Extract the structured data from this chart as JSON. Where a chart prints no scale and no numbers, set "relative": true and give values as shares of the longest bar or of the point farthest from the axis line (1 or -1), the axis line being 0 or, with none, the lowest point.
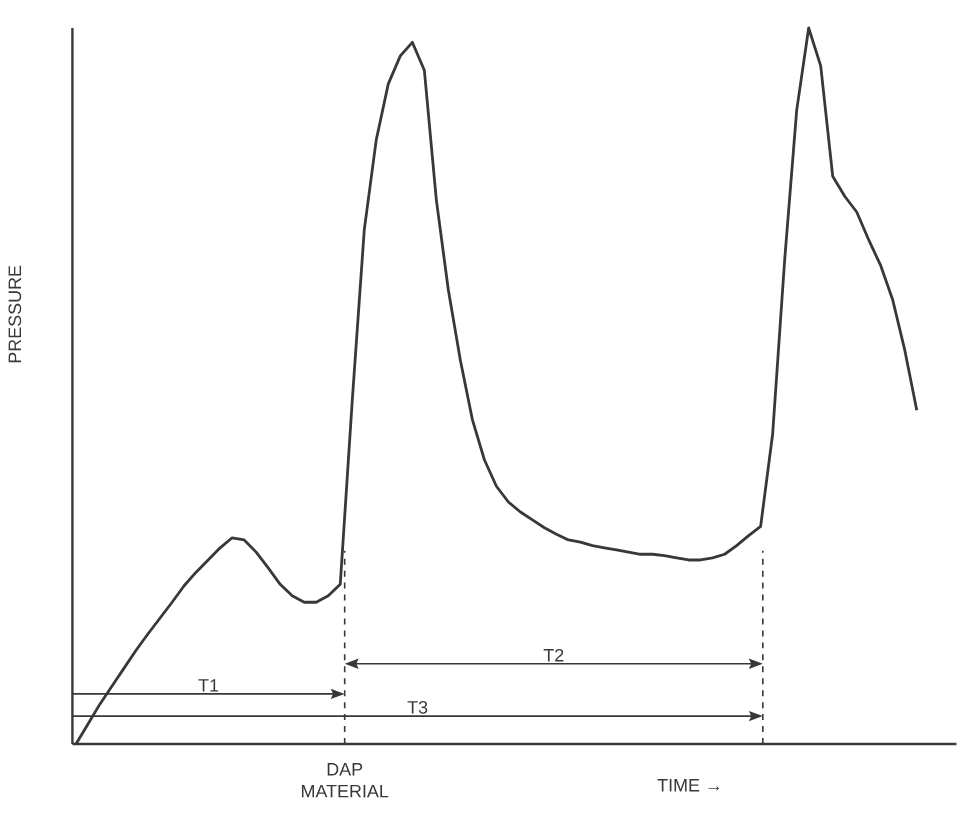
{
  "chart_data": {
    "type": "line",
    "relative": true,
    "xlabel": "TIME →",
    "ylabel": "PRESSURE",
    "color": "#383838",
    "marker": "none",
    "line_style": "solid",
    "categories": [
      null,
      null,
      null,
      null,
      null,
      null,
      null,
      null,
      null,
      null,
      null,
      null,
      null,
      null,
      null,
      null,
      null,
      null,
      null,
      null,
      null,
      null,
      null,
      null,
      null,
      null,
      null,
      null,
      null,
      null,
      null,
      null,
      null,
      null,
      null,
      null,
      null,
      null,
      null,
      null,
      null,
      null,
      null,
      null,
      null,
      null,
      null,
      null,
      null,
      null,
      null,
      null,
      null,
      null,
      null,
      null,
      null,
      null,
      null,
      null,
      null,
      null,
      null,
      null,
      null,
      null,
      null,
      null,
      null,
      null,
      null
    ],
    "values": [
      0,
      0.028,
      0.056,
      0.081,
      0.106,
      0.131,
      0.154,
      0.176,
      0.198,
      0.221,
      0.24,
      0.257,
      0.274,
      0.288,
      0.285,
      0.268,
      0.246,
      0.223,
      0.207,
      0.198,
      0.198,
      0.207,
      0.223,
      0.48,
      0.718,
      0.844,
      0.922,
      0.961,
      0.98,
      0.941,
      0.76,
      0.634,
      0.536,
      0.453,
      0.397,
      0.36,
      0.338,
      0.324,
      0.313,
      0.302,
      0.293,
      0.285,
      0.282,
      0.277,
      0.274,
      0.271,
      0.268,
      0.265,
      0.265,
      0.263,
      0.26,
      0.257,
      0.257,
      0.26,
      0.265,
      0.277,
      0.291,
      0.304,
      0.433,
      0.676,
      0.885,
      1,
      0.947,
      0.793,
      0.765,
      0.743,
      0.704,
      0.668,
      0.62,
      0.55,
      0.466
    ],
    "annotations": [
      "T1",
      "T2",
      "T3",
      "DAP MATERIAL"
    ]
  }
}
